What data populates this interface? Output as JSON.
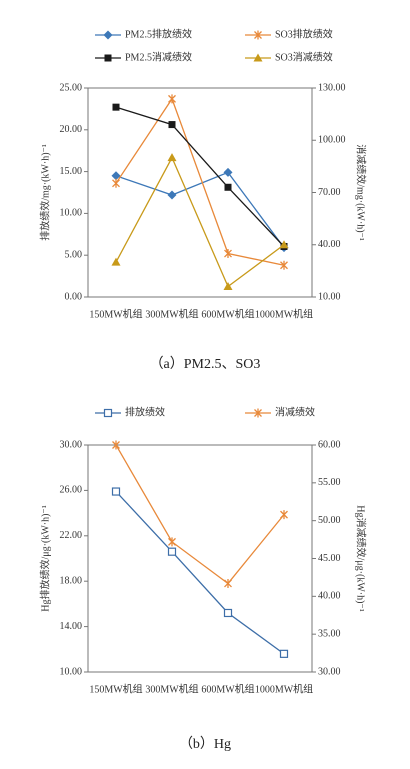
{
  "chart_data": [
    {
      "type": "line",
      "caption": "（a）PM2.5、SO3",
      "ylabel": "排放绩效/mg·(kW·h)⁻¹",
      "y2label": "消减绩效/mg·(kW·h)⁻¹",
      "categories": [
        "150MW机组",
        "300MW机组",
        "600MW机组",
        "1000MW机组"
      ],
      "ylim": [
        0,
        25
      ],
      "yticks": [
        {
          "value": 0,
          "label": "0.00"
        },
        {
          "value": 5,
          "label": "5.00"
        },
        {
          "value": 10,
          "label": "10.00"
        },
        {
          "value": 15,
          "label": "15.00"
        },
        {
          "value": 20,
          "label": "20.00"
        },
        {
          "value": 25,
          "label": "25.00"
        }
      ],
      "y2lim": [
        10,
        130
      ],
      "y2ticks": [
        {
          "value": 10,
          "label": "10.00"
        },
        {
          "value": 40,
          "label": "40.00"
        },
        {
          "value": 70,
          "label": "70.00"
        },
        {
          "value": 100,
          "label": "100.00"
        },
        {
          "value": 130,
          "label": "130.00"
        }
      ],
      "series": [
        {
          "name": "PM2.5排放绩效",
          "color": "#3d78b8",
          "marker": "diamond",
          "values": [
            14.5,
            12.2,
            14.9,
            5.9
          ]
        },
        {
          "name": "SO3排放绩效",
          "color": "#e8893a",
          "marker": "cross",
          "values": [
            13.6,
            23.7,
            5.2,
            3.8
          ]
        },
        {
          "name": "PM2.5消减绩效",
          "color": "#1a1a1a",
          "marker": "square",
          "axis": "y2",
          "values": [
            119,
            109,
            73,
            39
          ]
        },
        {
          "name": "SO3消减绩效",
          "color": "#c89a1a",
          "marker": "triangle",
          "axis": "y2",
          "values": [
            30,
            90,
            16,
            40
          ]
        }
      ]
    },
    {
      "type": "line",
      "caption": "（b）Hg",
      "ylabel": "Hg排放绩效/μg·(kW·h)⁻¹",
      "y2label": "Hg消减绩效/μg·(kW·h)⁻¹",
      "categories": [
        "150MW机组",
        "300MW机组",
        "600MW机组",
        "1000MW机组"
      ],
      "ylim": [
        10,
        30
      ],
      "yticks": [
        {
          "value": 10,
          "label": "10.00"
        },
        {
          "value": 14,
          "label": "14.00"
        },
        {
          "value": 18,
          "label": "18.00"
        },
        {
          "value": 22,
          "label": "22.00"
        },
        {
          "value": 26,
          "label": "26.00"
        },
        {
          "value": 30,
          "label": "30.00"
        }
      ],
      "y2lim": [
        30,
        60
      ],
      "y2ticks": [
        {
          "value": 30,
          "label": "30.00"
        },
        {
          "value": 35,
          "label": "35.00"
        },
        {
          "value": 40,
          "label": "40.00"
        },
        {
          "value": 45,
          "label": "45.00"
        },
        {
          "value": 50,
          "label": "50.00"
        },
        {
          "value": 55,
          "label": "55.00"
        },
        {
          "value": 60,
          "label": "60.00"
        }
      ],
      "series": [
        {
          "name": "排放绩效",
          "color": "#3d6ea8",
          "marker": "open-square",
          "values": [
            25.9,
            20.6,
            15.2,
            11.6
          ]
        },
        {
          "name": "消减绩效",
          "color": "#e8893a",
          "marker": "cross",
          "axis": "y2",
          "values": [
            60,
            47.2,
            41.7,
            50.8
          ]
        }
      ]
    }
  ]
}
